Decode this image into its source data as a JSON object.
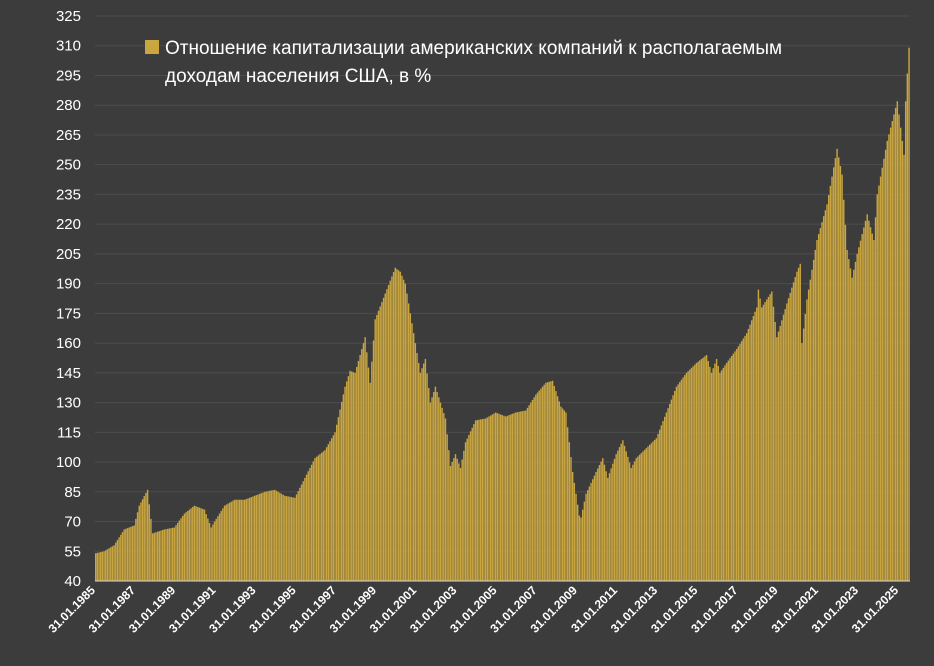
{
  "chart_data": {
    "type": "bar",
    "legend": {
      "line1": "Отношение капитализации американских компаний к располагаемым",
      "line2": "доходам населения США, в %",
      "placement": "top-left"
    },
    "bar_color": "#c9a640",
    "background": "#3c3c3c",
    "grid": true,
    "grid_color": "#4d4d4d",
    "ylim": [
      40,
      325
    ],
    "yticks": [
      40,
      55,
      70,
      85,
      100,
      115,
      130,
      145,
      160,
      175,
      190,
      205,
      220,
      235,
      250,
      265,
      280,
      295,
      310,
      325
    ],
    "xticks": [
      "31.01.1985",
      "31.01.1987",
      "31.01.1989",
      "31.01.1991",
      "31.01.1993",
      "31.01.1995",
      "31.01.1997",
      "31.01.1999",
      "31.01.2001",
      "31.01.2003",
      "31.01.2005",
      "31.01.2007",
      "31.01.2009",
      "31.01.2011",
      "31.01.2013",
      "31.01.2015",
      "31.01.2017",
      "31.01.2019",
      "31.01.2021",
      "31.01.2023",
      "31.01.2025"
    ],
    "x_start": "1985-01",
    "x_end": "2025-07",
    "anchors": [
      [
        "1985-01",
        54
      ],
      [
        "1985-06",
        55
      ],
      [
        "1985-12",
        58
      ],
      [
        "1986-06",
        66
      ],
      [
        "1986-12",
        68
      ],
      [
        "1987-03",
        78
      ],
      [
        "1987-08",
        86
      ],
      [
        "1987-11",
        64
      ],
      [
        "1988-06",
        66
      ],
      [
        "1988-12",
        67
      ],
      [
        "1989-06",
        74
      ],
      [
        "1989-12",
        78
      ],
      [
        "1990-06",
        76
      ],
      [
        "1990-10",
        67
      ],
      [
        "1990-12",
        70
      ],
      [
        "1991-06",
        78
      ],
      [
        "1991-12",
        81
      ],
      [
        "1992-06",
        81
      ],
      [
        "1992-12",
        83
      ],
      [
        "1993-06",
        85
      ],
      [
        "1993-12",
        86
      ],
      [
        "1994-06",
        83
      ],
      [
        "1994-12",
        82
      ],
      [
        "1995-06",
        92
      ],
      [
        "1995-12",
        102
      ],
      [
        "1996-06",
        106
      ],
      [
        "1996-12",
        115
      ],
      [
        "1997-06",
        138
      ],
      [
        "1997-09",
        146
      ],
      [
        "1997-12",
        145
      ],
      [
        "1998-06",
        163
      ],
      [
        "1998-09",
        140
      ],
      [
        "1998-12",
        172
      ],
      [
        "1999-06",
        185
      ],
      [
        "1999-12",
        198
      ],
      [
        "2000-03",
        196
      ],
      [
        "2000-06",
        190
      ],
      [
        "2000-12",
        160
      ],
      [
        "2001-03",
        145
      ],
      [
        "2001-06",
        152
      ],
      [
        "2001-09",
        130
      ],
      [
        "2001-12",
        138
      ],
      [
        "2002-06",
        122
      ],
      [
        "2002-09",
        98
      ],
      [
        "2002-12",
        104
      ],
      [
        "2003-03",
        97
      ],
      [
        "2003-06",
        110
      ],
      [
        "2003-12",
        121
      ],
      [
        "2004-06",
        122
      ],
      [
        "2004-12",
        125
      ],
      [
        "2005-06",
        123
      ],
      [
        "2005-12",
        125
      ],
      [
        "2006-06",
        126
      ],
      [
        "2006-12",
        134
      ],
      [
        "2007-06",
        140
      ],
      [
        "2007-10",
        141
      ],
      [
        "2008-03",
        128
      ],
      [
        "2008-06",
        125
      ],
      [
        "2008-10",
        95
      ],
      [
        "2009-02",
        73
      ],
      [
        "2009-03",
        72
      ],
      [
        "2009-06",
        84
      ],
      [
        "2009-12",
        95
      ],
      [
        "2010-04",
        102
      ],
      [
        "2010-07",
        92
      ],
      [
        "2010-12",
        104
      ],
      [
        "2011-04",
        111
      ],
      [
        "2011-09",
        97
      ],
      [
        "2011-12",
        102
      ],
      [
        "2012-06",
        107
      ],
      [
        "2012-12",
        112
      ],
      [
        "2013-06",
        125
      ],
      [
        "2013-12",
        138
      ],
      [
        "2014-06",
        145
      ],
      [
        "2014-12",
        150
      ],
      [
        "2015-06",
        154
      ],
      [
        "2015-09",
        145
      ],
      [
        "2015-12",
        152
      ],
      [
        "2016-02",
        145
      ],
      [
        "2016-06",
        150
      ],
      [
        "2016-12",
        157
      ],
      [
        "2017-06",
        165
      ],
      [
        "2017-12",
        178
      ],
      [
        "2018-01",
        187
      ],
      [
        "2018-03",
        178
      ],
      [
        "2018-09",
        186
      ],
      [
        "2018-12",
        163
      ],
      [
        "2019-06",
        180
      ],
      [
        "2019-12",
        196
      ],
      [
        "2020-02",
        200
      ],
      [
        "2020-03",
        160
      ],
      [
        "2020-06",
        182
      ],
      [
        "2020-12",
        212
      ],
      [
        "2021-06",
        230
      ],
      [
        "2021-12",
        258
      ],
      [
        "2022-03",
        245
      ],
      [
        "2022-06",
        207
      ],
      [
        "2022-09",
        193
      ],
      [
        "2022-12",
        205
      ],
      [
        "2023-06",
        225
      ],
      [
        "2023-10",
        212
      ],
      [
        "2023-12",
        235
      ],
      [
        "2024-06",
        262
      ],
      [
        "2024-12",
        282
      ],
      [
        "2025-03",
        262
      ],
      [
        "2025-04",
        255
      ],
      [
        "2025-05",
        282
      ],
      [
        "2025-06",
        296
      ],
      [
        "2025-07",
        309
      ]
    ]
  }
}
